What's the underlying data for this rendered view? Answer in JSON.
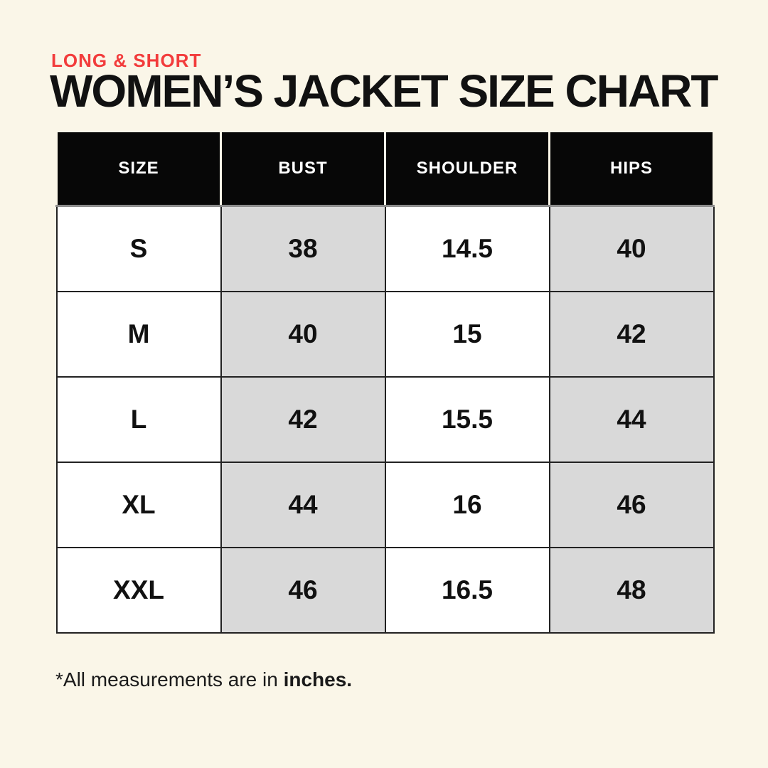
{
  "header": {
    "eyebrow": "LONG & SHORT",
    "title": "WOMEN’S JACKET SIZE CHART"
  },
  "colors": {
    "background_cream": "#FAF6E8",
    "accent_red": "#F23C3C",
    "header_bg": "#070707",
    "header_text": "#FFFFFF",
    "stripe_gray": "#D9D9D9",
    "cell_white": "#FFFFFF",
    "text_black": "#111111"
  },
  "chart_data": {
    "type": "table",
    "title": "WOMEN’S JACKET SIZE CHART",
    "subtitle": "LONG & SHORT",
    "columns": [
      "SIZE",
      "BUST",
      "SHOULDER",
      "HIPS"
    ],
    "rows": [
      [
        "S",
        "38",
        "14.5",
        "40"
      ],
      [
        "M",
        "40",
        "15",
        "42"
      ],
      [
        "L",
        "42",
        "15.5",
        "44"
      ],
      [
        "XL",
        "44",
        "16",
        "46"
      ],
      [
        "XXL",
        "46",
        "16.5",
        "48"
      ]
    ],
    "units": "inches",
    "note": "*All measurements are in inches."
  },
  "footnote": {
    "prefix": "*All measurements are in ",
    "bold": "inches."
  }
}
